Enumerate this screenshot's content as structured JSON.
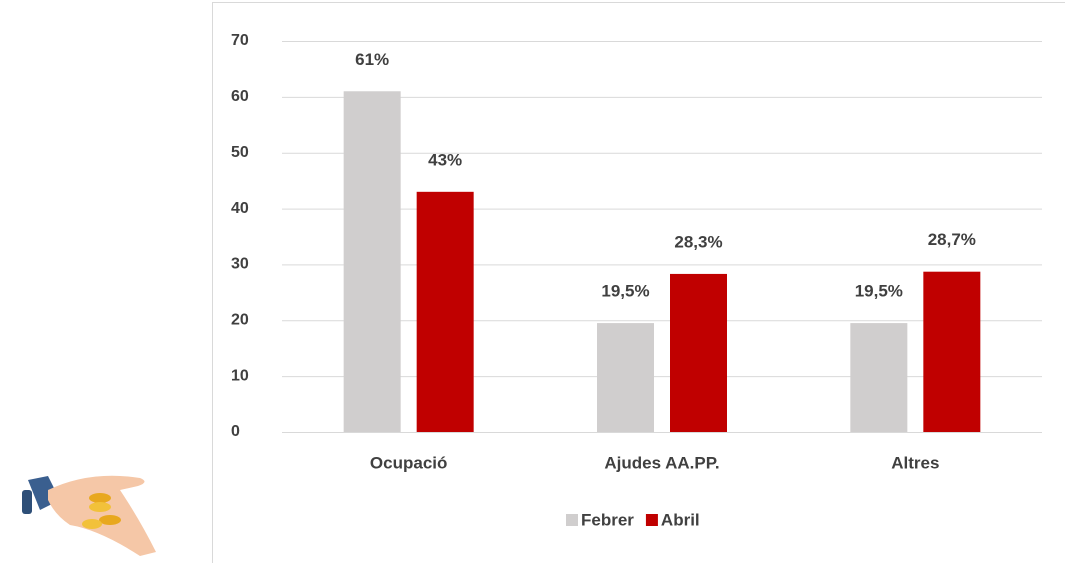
{
  "chart_data": {
    "type": "bar",
    "categories": [
      "Ocupació",
      "Ajudes AA.PP.",
      "Altres"
    ],
    "series": [
      {
        "name": "Febrer",
        "color": "#d0cece",
        "values": [
          61,
          19.5,
          19.5
        ],
        "value_labels": [
          "61%",
          "19,5%",
          "19,5%"
        ]
      },
      {
        "name": "Abril",
        "color": "#c00000",
        "values": [
          43,
          28.3,
          28.7
        ],
        "value_labels": [
          "43%",
          "28,3%",
          "28,7%"
        ]
      }
    ],
    "ylim": [
      0,
      70
    ],
    "yticks": [
      0,
      10,
      20,
      30,
      40,
      50,
      60,
      70
    ],
    "grid": true,
    "legend": "bottom"
  }
}
